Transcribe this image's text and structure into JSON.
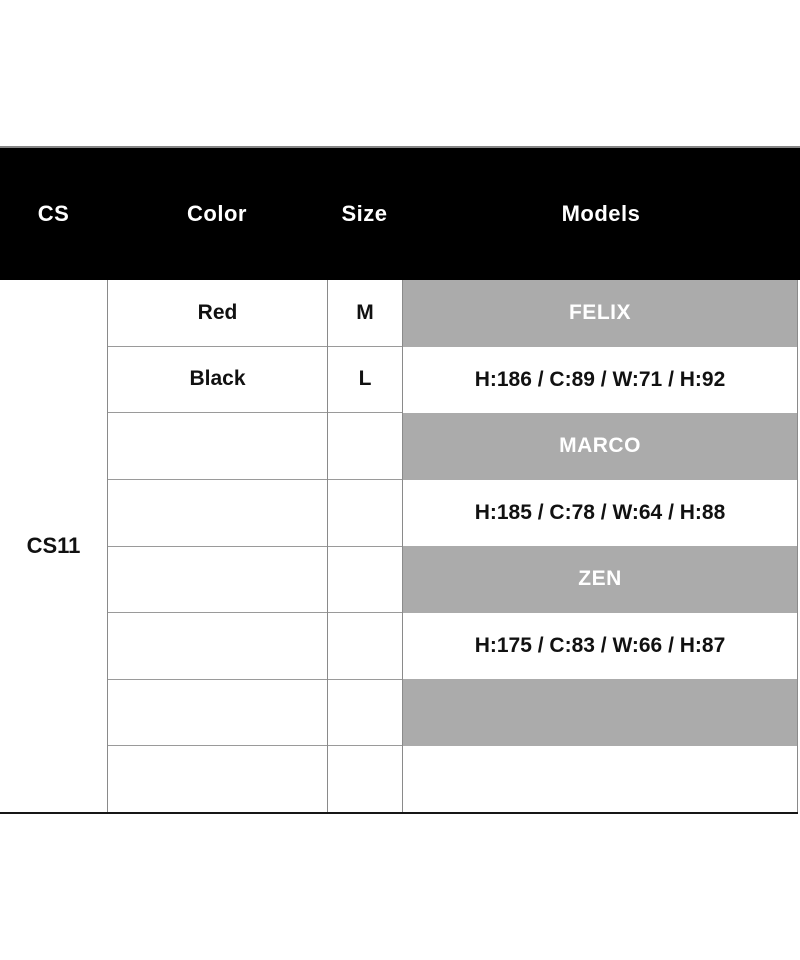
{
  "table": {
    "title_semantic": "size-chart",
    "header": {
      "cs": "CS",
      "color": "Color",
      "size": "Size",
      "models": "Models"
    },
    "cs_code": "CS11",
    "rows": [
      {
        "color": "Red",
        "size": "M",
        "models": "FELIX",
        "models_style": "band"
      },
      {
        "color": "Black",
        "size": "L",
        "models": "H:186 / C:89 / W:71 / H:92",
        "models_style": "plain"
      },
      {
        "color": "",
        "size": "",
        "models": "MARCO",
        "models_style": "band"
      },
      {
        "color": "",
        "size": "",
        "models": "H:185 / C:78 / W:64 / H:88",
        "models_style": "plain"
      },
      {
        "color": "",
        "size": "",
        "models": "ZEN",
        "models_style": "band"
      },
      {
        "color": "",
        "size": "",
        "models": "H:175 / C:83 / W:66 / H:87",
        "models_style": "plain"
      },
      {
        "color": "",
        "size": "",
        "models": "",
        "models_style": "band"
      },
      {
        "color": "",
        "size": "",
        "models": "",
        "models_style": "plain"
      }
    ],
    "colors": {
      "header_bg": "#000000",
      "header_text": "#ffffff",
      "band_gray": "#ababab",
      "band_text": "#ffffff",
      "grid_line": "#8a8a8a",
      "row_line": "#9a9a9a",
      "bottom_border": "#161616",
      "body_text": "#111111"
    }
  }
}
